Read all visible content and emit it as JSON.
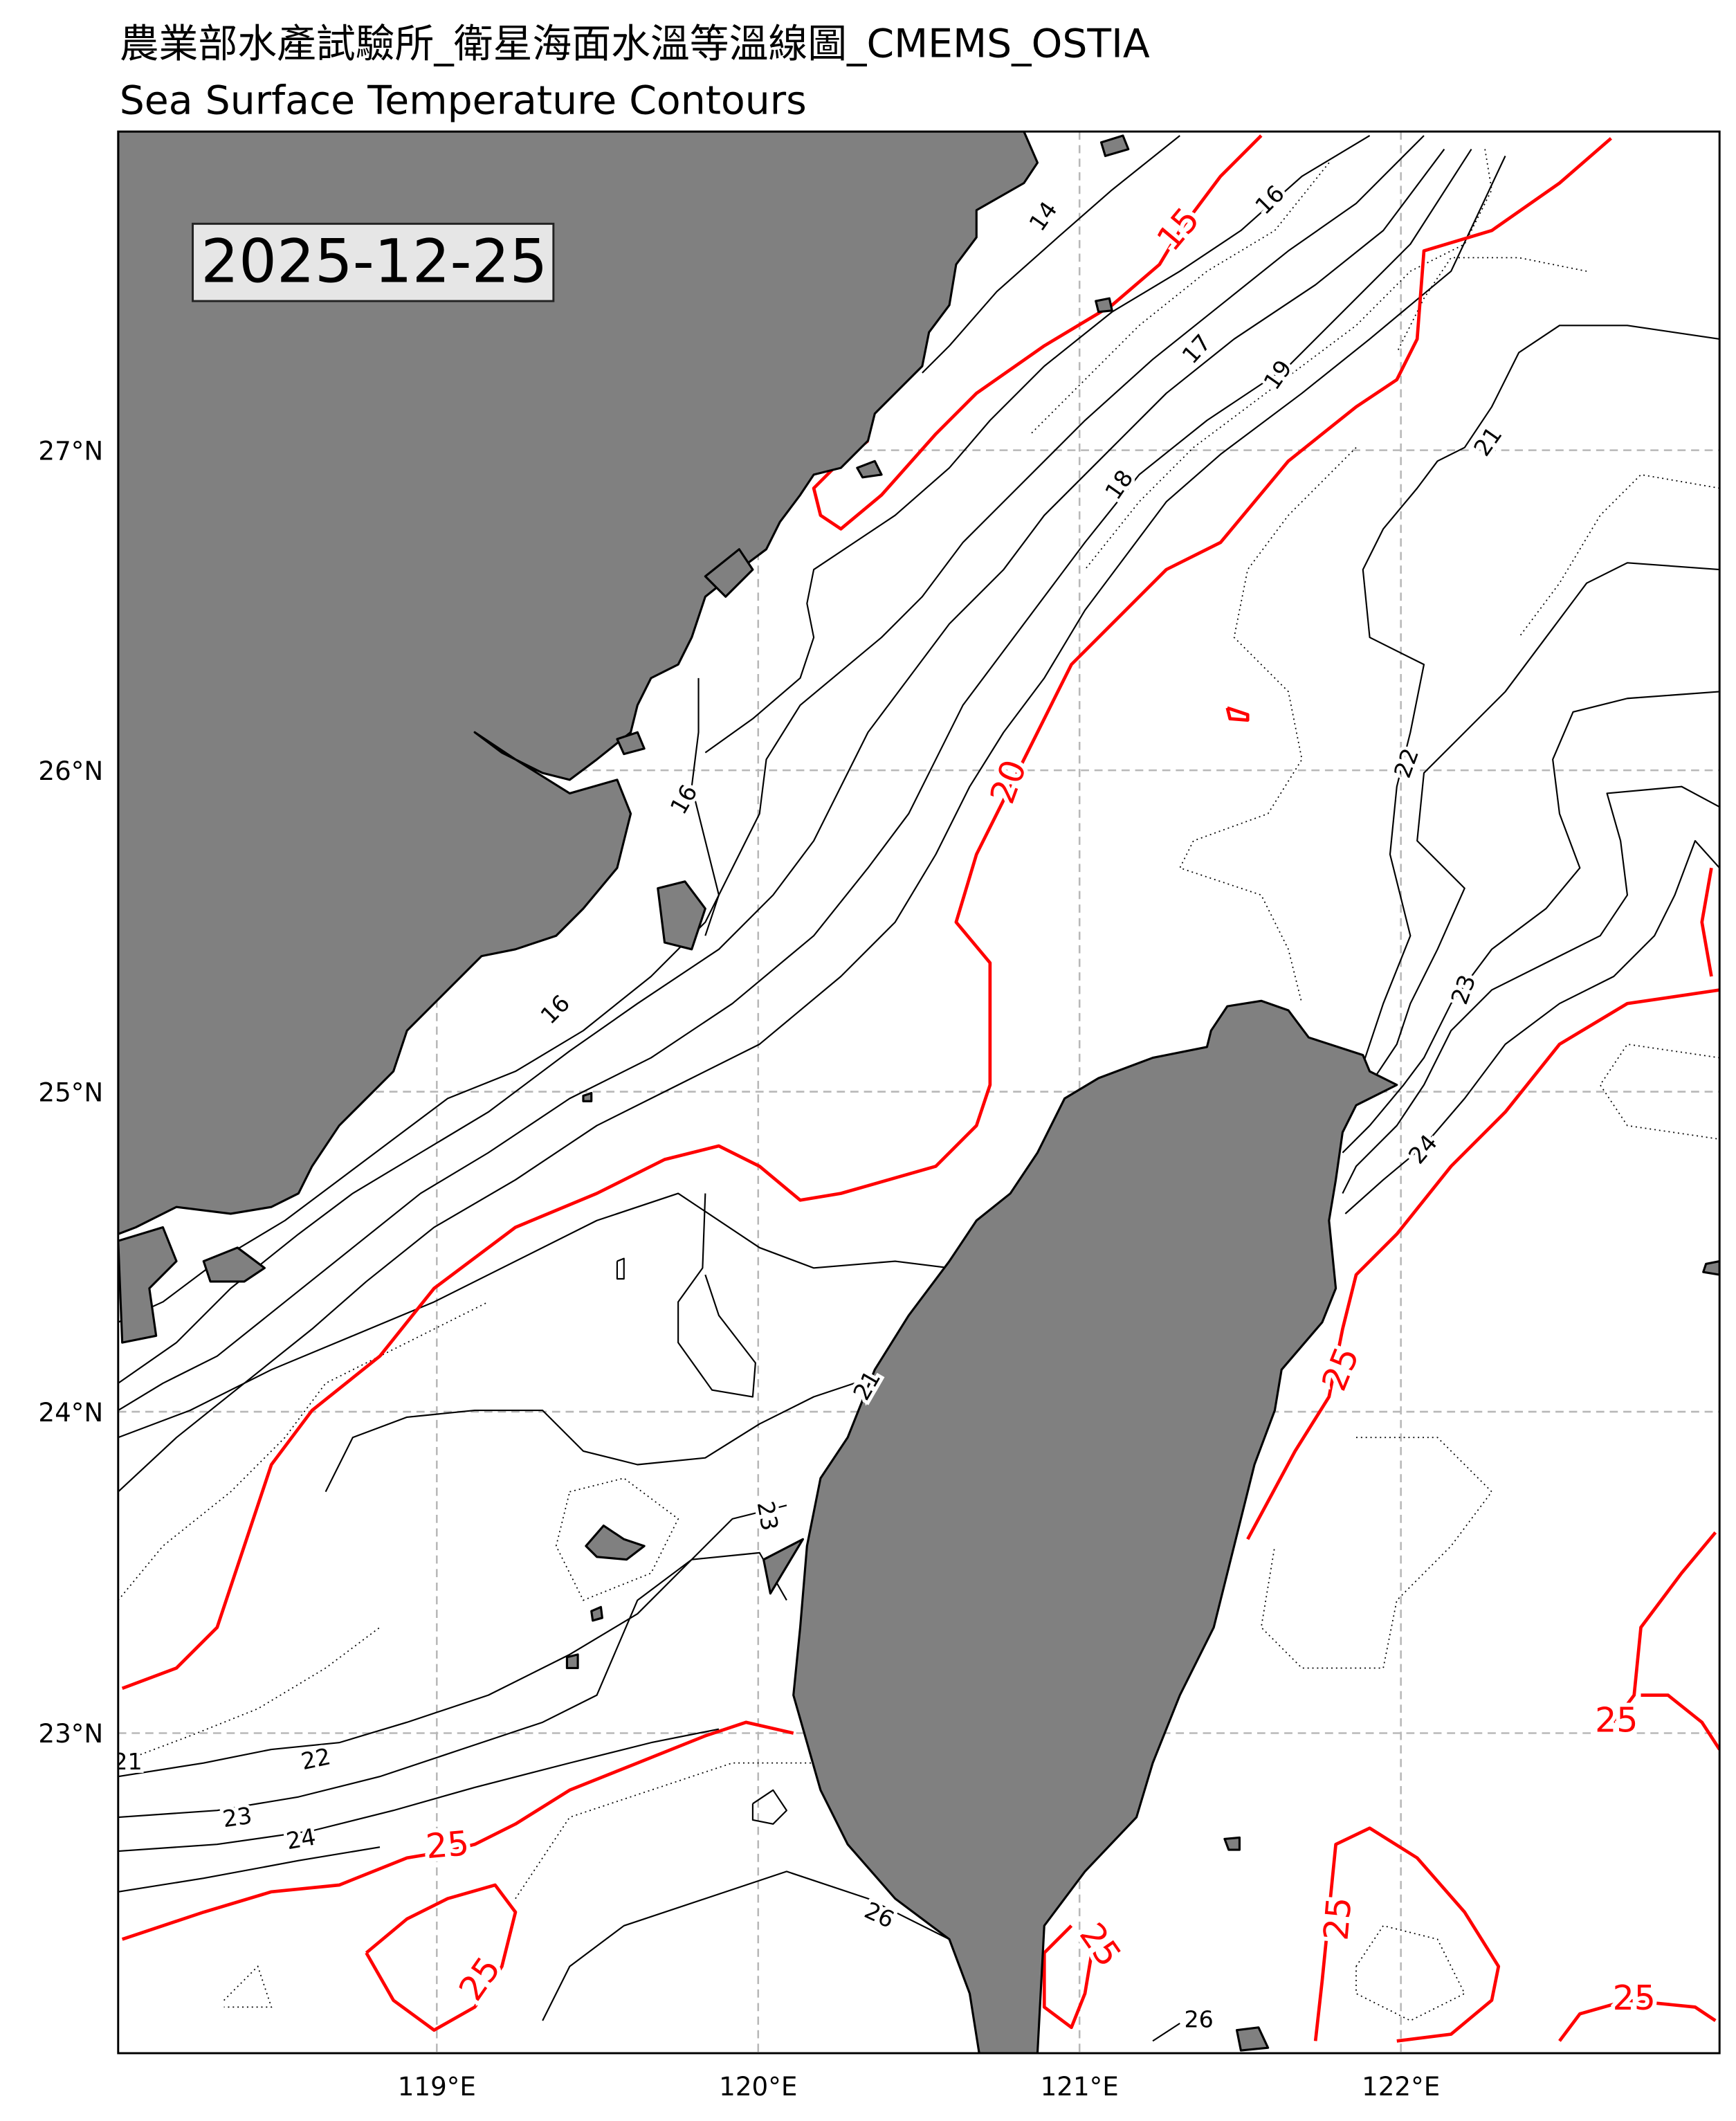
{
  "header": {
    "title": "農業部水產試驗所_衛星海面水溫等溫線圖_CMEMS_OSTIA",
    "subtitle": "Sea Surface Temperature Contours"
  },
  "map": {
    "date": "2025-12-25",
    "extent": {
      "lon": [
        118,
        123
      ],
      "lat": [
        22,
        28
      ]
    },
    "x_ticks": [
      "119°E",
      "120°E",
      "121°E",
      "122°E"
    ],
    "y_ticks": [
      "27°N",
      "26°N",
      "25°N",
      "24°N",
      "23°N"
    ],
    "colors": {
      "land": "#808080",
      "highlight_contour": "#ff0000",
      "contour": "#000000",
      "grid": "#b8b8b8",
      "date_box": "#e6e6e6"
    },
    "highlight_levels": [
      15,
      20,
      25
    ],
    "contour_labels": [
      "14",
      "15",
      "16",
      "17",
      "19",
      "18",
      "21",
      "20",
      "16",
      "16",
      "22",
      "23",
      "24",
      "25",
      "21",
      "23",
      "21",
      "22",
      "23",
      "24",
      "25",
      "25",
      "26",
      "25",
      "25",
      "26",
      "25",
      "25"
    ]
  }
}
